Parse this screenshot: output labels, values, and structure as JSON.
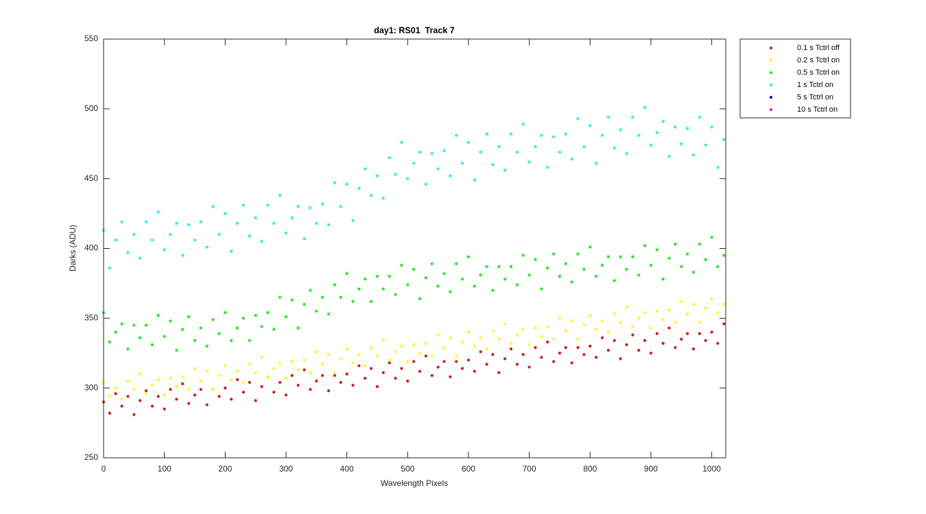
{
  "chart_data": {
    "type": "scatter",
    "title": "day1: RS01  Track 7",
    "x_label": "Wavelength Pixels",
    "y_label": "Darks (ADU)",
    "xlim": [
      0,
      1023
    ],
    "ylim": [
      250,
      550
    ],
    "xticks": [
      0,
      100,
      200,
      300,
      400,
      500,
      600,
      700,
      800,
      900,
      1000
    ],
    "yticks": [
      250,
      300,
      350,
      400,
      450,
      500,
      550
    ],
    "x": [
      0,
      10,
      20,
      30,
      40,
      50,
      60,
      70,
      80,
      90,
      100,
      110,
      120,
      130,
      140,
      150,
      160,
      170,
      180,
      190,
      200,
      210,
      220,
      230,
      240,
      250,
      260,
      270,
      280,
      290,
      300,
      310,
      320,
      330,
      340,
      350,
      360,
      370,
      380,
      390,
      400,
      410,
      420,
      430,
      440,
      450,
      460,
      470,
      480,
      490,
      500,
      510,
      520,
      530,
      540,
      550,
      560,
      570,
      580,
      590,
      600,
      610,
      620,
      630,
      640,
      650,
      660,
      670,
      680,
      690,
      700,
      710,
      720,
      730,
      740,
      750,
      760,
      770,
      780,
      790,
      800,
      810,
      820,
      830,
      840,
      850,
      860,
      870,
      880,
      890,
      900,
      910,
      920,
      930,
      940,
      950,
      960,
      970,
      980,
      990,
      1000,
      1010,
      1020
    ],
    "series": [
      {
        "name": "0.1 s Tctrl off",
        "color": "#ff0000",
        "values": [
          290,
          282,
          296,
          287,
          294,
          281,
          291,
          298,
          287,
          294,
          285,
          299,
          292,
          303,
          289,
          295,
          299,
          288,
          299,
          294,
          300,
          292,
          306,
          297,
          304,
          291,
          301,
          308,
          297,
          304,
          295,
          309,
          302,
          313,
          299,
          305,
          309,
          298,
          309,
          304,
          310,
          302,
          316,
          307,
          314,
          301,
          311,
          318,
          307,
          314,
          305,
          319,
          312,
          323,
          309,
          315,
          319,
          308,
          319,
          314,
          320,
          312,
          326,
          317,
          324,
          311,
          321,
          328,
          317,
          324,
          315,
          329,
          322,
          333,
          319,
          325,
          329,
          318,
          329,
          324,
          330,
          322,
          336,
          327,
          334,
          321,
          331,
          338,
          327,
          334,
          325,
          339,
          332,
          343,
          329,
          335,
          339,
          328,
          339,
          334,
          340,
          332,
          346
        ]
      },
      {
        "name": "0.2 s Tctrl on",
        "color": "#ffff00",
        "values": [
          304,
          294,
          300,
          292,
          305,
          299,
          310,
          296,
          302,
          306,
          295,
          307,
          301,
          308,
          299,
          314,
          305,
          312,
          299,
          309,
          316,
          306,
          312,
          304,
          317,
          311,
          322,
          308,
          314,
          318,
          307,
          319,
          313,
          320,
          311,
          326,
          317,
          324,
          311,
          321,
          328,
          318,
          324,
          316,
          329,
          323,
          334,
          320,
          326,
          330,
          319,
          331,
          325,
          332,
          323,
          338,
          329,
          336,
          323,
          333,
          340,
          330,
          336,
          328,
          341,
          335,
          346,
          332,
          338,
          342,
          331,
          343,
          337,
          344,
          335,
          350,
          341,
          348,
          335,
          345,
          352,
          342,
          348,
          340,
          353,
          347,
          358,
          344,
          350,
          354,
          343,
          355,
          349,
          356,
          347,
          362,
          353,
          360,
          347,
          357,
          364,
          354,
          360
        ]
      },
      {
        "name": "0.5 s Tctrl on",
        "color": "#00ff00",
        "values": [
          354,
          333,
          340,
          346,
          328,
          345,
          336,
          345,
          331,
          352,
          337,
          348,
          327,
          342,
          351,
          334,
          343,
          330,
          349,
          339,
          354,
          334,
          343,
          350,
          334,
          352,
          344,
          354,
          342,
          365,
          351,
          363,
          343,
          360,
          370,
          355,
          365,
          353,
          374,
          365,
          382,
          362,
          371,
          378,
          362,
          380,
          371,
          380,
          367,
          388,
          374,
          385,
          364,
          379,
          389,
          373,
          382,
          369,
          389,
          378,
          394,
          373,
          381,
          387,
          370,
          387,
          378,
          387,
          374,
          395,
          381,
          392,
          371,
          386,
          396,
          380,
          389,
          376,
          396,
          385,
          401,
          380,
          388,
          394,
          377,
          394,
          385,
          394,
          381,
          402,
          388,
          399,
          378,
          393,
          403,
          387,
          396,
          383,
          403,
          392,
          408,
          387,
          395
        ]
      },
      {
        "name": "1 s Tctrl on",
        "color": "#00ffff",
        "values": [
          413,
          386,
          406,
          419,
          397,
          410,
          393,
          419,
          406,
          426,
          399,
          410,
          418,
          395,
          417,
          406,
          419,
          401,
          430,
          410,
          425,
          398,
          418,
          431,
          409,
          422,
          405,
          431,
          418,
          438,
          411,
          422,
          430,
          407,
          429,
          418,
          432,
          417,
          447,
          430,
          446,
          420,
          443,
          457,
          438,
          452,
          436,
          465,
          453,
          476,
          450,
          461,
          469,
          446,
          468,
          457,
          470,
          452,
          481,
          461,
          476,
          449,
          469,
          482,
          460,
          473,
          456,
          482,
          469,
          489,
          462,
          473,
          481,
          458,
          480,
          469,
          482,
          464,
          493,
          473,
          488,
          461,
          481,
          494,
          472,
          485,
          468,
          494,
          481,
          501,
          474,
          483,
          491,
          466,
          487,
          475,
          486,
          467,
          494,
          474,
          487,
          458,
          478
        ]
      },
      {
        "name": "5 s Tctrl on",
        "color": "#0000ff",
        "values": [
          null,
          null,
          null,
          null,
          null,
          null,
          null,
          null,
          null,
          null,
          null,
          null,
          null,
          null,
          null,
          null,
          null,
          null,
          null,
          null,
          null,
          null,
          null,
          null,
          null,
          null,
          null,
          null,
          null,
          null,
          null,
          null,
          null,
          null,
          null,
          null,
          null,
          null,
          null,
          null,
          null,
          null,
          null,
          null,
          null,
          null,
          null,
          null,
          null,
          null,
          null,
          null,
          null,
          null,
          null,
          null,
          null,
          null,
          null,
          null,
          null,
          null,
          null,
          null,
          null,
          null,
          null,
          null,
          null,
          null,
          null,
          null,
          null,
          null,
          null,
          null,
          null,
          null,
          null,
          null,
          null,
          null,
          null,
          null,
          null,
          null,
          null,
          null,
          null,
          null,
          null,
          null,
          null,
          null,
          null,
          null,
          null,
          null,
          null,
          null,
          null,
          null,
          null
        ]
      },
      {
        "name": "10 s Tctrl on",
        "color": "#ff00ff",
        "values": [
          null,
          null,
          null,
          null,
          null,
          null,
          null,
          null,
          null,
          null,
          null,
          null,
          null,
          null,
          null,
          null,
          null,
          null,
          null,
          null,
          null,
          null,
          null,
          null,
          null,
          null,
          null,
          null,
          null,
          null,
          null,
          null,
          null,
          null,
          null,
          null,
          null,
          null,
          null,
          null,
          null,
          null,
          null,
          null,
          null,
          null,
          null,
          null,
          null,
          null,
          null,
          null,
          null,
          null,
          null,
          null,
          null,
          null,
          null,
          null,
          null,
          null,
          null,
          null,
          null,
          null,
          null,
          null,
          null,
          null,
          null,
          null,
          null,
          null,
          null,
          null,
          null,
          null,
          null,
          null,
          null,
          null,
          null,
          null,
          null,
          null,
          null,
          null,
          null,
          null,
          null,
          null,
          null,
          null,
          null,
          null,
          null,
          null,
          null,
          null,
          null,
          null,
          null
        ]
      }
    ]
  }
}
